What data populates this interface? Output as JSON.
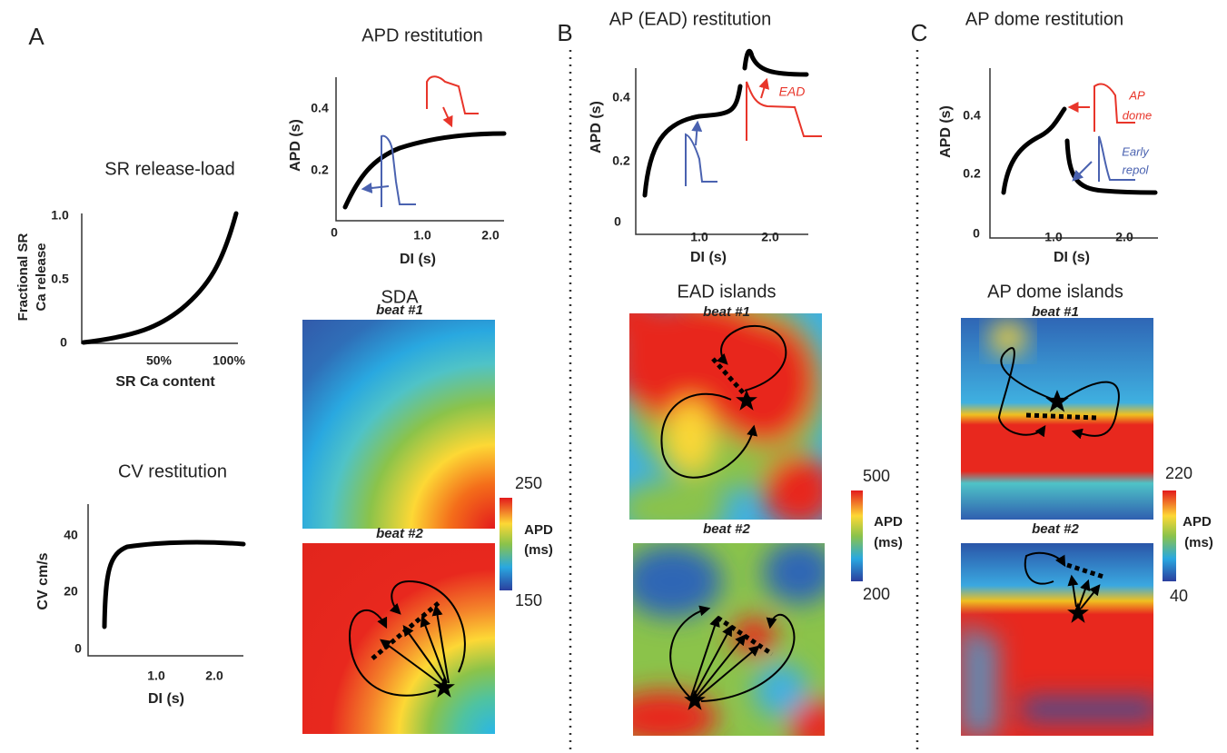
{
  "panel_labels": [
    "A",
    "B",
    "C"
  ],
  "sr_release": {
    "title": "SR release-load",
    "ylabel": [
      "Fractional SR",
      "Ca release"
    ],
    "xlabel": "SR Ca content",
    "yticks": [
      "0",
      "0.5",
      "1.0"
    ],
    "xticks": [
      "50%",
      "100%"
    ]
  },
  "cv_restitution": {
    "title": "CV restitution",
    "ylabel": "CV cm/s",
    "xlabel": "DI (s)",
    "yticks": [
      "0",
      "20",
      "40"
    ],
    "xticks": [
      "1.0",
      "2.0"
    ]
  },
  "apd_restitution": {
    "title": "APD restitution",
    "ylabel": "APD (s)",
    "xlabel": "DI (s)",
    "yticks": [
      "0",
      "0.2",
      "0.4"
    ],
    "xticks": [
      "1.0",
      "2.0"
    ]
  },
  "sda": {
    "title": "SDA",
    "beat1": "beat #1",
    "beat2": "beat #2",
    "colorbar": {
      "max": "250",
      "min": "150",
      "label": [
        "APD",
        "(ms)"
      ]
    }
  },
  "ead_restitution": {
    "title": "AP (EAD) restitution",
    "ylabel": "APD (s)",
    "xlabel": "DI (s)",
    "yticks": [
      "0",
      "0.2",
      "0.4"
    ],
    "xticks": [
      "1.0",
      "2.0"
    ],
    "annotation": "EAD"
  },
  "ead_islands": {
    "title": "EAD islands",
    "beat1": "beat #1",
    "beat2": "beat #2",
    "colorbar": {
      "max": "500",
      "min": "200",
      "label": [
        "APD",
        "(ms)"
      ]
    }
  },
  "dome_restitution": {
    "title": "AP dome restitution",
    "ylabel": "APD (s)",
    "xlabel": "DI (s)",
    "yticks": [
      "0",
      "0.2",
      "0.4"
    ],
    "xticks": [
      "1.0",
      "2.0"
    ],
    "annotation_dome": [
      "AP",
      "dome"
    ],
    "annotation_repol": [
      "Early",
      "repol"
    ]
  },
  "dome_islands": {
    "title": "AP dome islands",
    "beat1": "beat #1",
    "beat2": "beat #2",
    "colorbar": {
      "max": "220",
      "min": "40",
      "label": [
        "APD",
        "(ms)"
      ]
    }
  }
}
